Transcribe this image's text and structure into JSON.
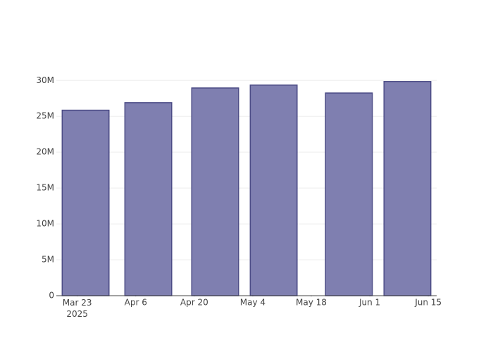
{
  "chart_data": {
    "type": "bar",
    "x": [
      "2025-03-25",
      "2025-04-09",
      "2025-04-25",
      "2025-05-09",
      "2025-05-27",
      "2025-06-10"
    ],
    "values": [
      25850000,
      26900000,
      28950000,
      29350000,
      28250000,
      29850000
    ],
    "color": "#7f7fb0",
    "line_color": "#4b4b85",
    "xlim": [
      "2025-03-18",
      "2025-06-17"
    ],
    "xticks": [
      {
        "value": "2025-03-23",
        "label": "Mar 23\n2025"
      },
      {
        "value": "2025-04-06",
        "label": "Apr 6"
      },
      {
        "value": "2025-04-20",
        "label": "Apr 20"
      },
      {
        "value": "2025-05-04",
        "label": "May 4"
      },
      {
        "value": "2025-05-18",
        "label": "May 18"
      },
      {
        "value": "2025-06-01",
        "label": "Jun 1"
      },
      {
        "value": "2025-06-15",
        "label": "Jun 15"
      }
    ],
    "ylim": [
      0,
      31400000
    ],
    "yticks": [
      0,
      {
        "value": 5000000,
        "label": "5M"
      },
      {
        "value": 10000000,
        "label": "10M"
      },
      {
        "value": 15000000,
        "label": "15M"
      },
      {
        "value": 20000000,
        "label": "20M"
      },
      {
        "value": 25000000,
        "label": "25M"
      },
      {
        "value": 30000000,
        "label": "30M"
      }
    ],
    "grid": true
  }
}
